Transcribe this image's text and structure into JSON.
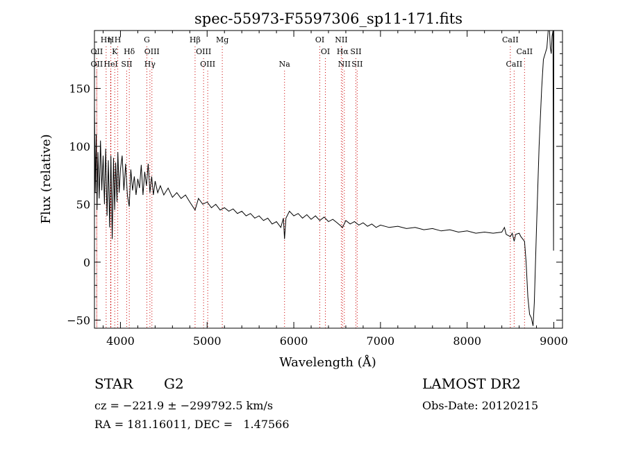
{
  "chart_data": {
    "type": "line",
    "title": "spec-55973-F5597306_sp11-171.fits",
    "xlabel": "Wavelength (Å)",
    "ylabel": "Flux (relative)",
    "xlim": [
      3700,
      9100
    ],
    "ylim": [
      -57,
      200
    ],
    "x_ticks": [
      4000,
      5000,
      6000,
      7000,
      8000,
      9000
    ],
    "y_ticks": [
      -50,
      0,
      50,
      100,
      150
    ],
    "line_color": "#000000",
    "marker_color": "#cc0000",
    "series": [
      {
        "values": [
          [
            3700,
            135
          ],
          [
            3710,
            60
          ],
          [
            3720,
            110
          ],
          [
            3730,
            45
          ],
          [
            3740,
            95
          ],
          [
            3755,
            55
          ],
          [
            3770,
            105
          ],
          [
            3785,
            62
          ],
          [
            3800,
            92
          ],
          [
            3815,
            50
          ],
          [
            3830,
            98
          ],
          [
            3845,
            40
          ],
          [
            3860,
            88
          ],
          [
            3875,
            30
          ],
          [
            3890,
            92
          ],
          [
            3905,
            20
          ],
          [
            3920,
            90
          ],
          [
            3933,
            45
          ],
          [
            3945,
            86
          ],
          [
            3960,
            52
          ],
          [
            3970,
            95
          ],
          [
            3985,
            60
          ],
          [
            4000,
            80
          ],
          [
            4020,
            92
          ],
          [
            4040,
            62
          ],
          [
            4060,
            85
          ],
          [
            4080,
            58
          ],
          [
            4101,
            48
          ],
          [
            4120,
            80
          ],
          [
            4140,
            62
          ],
          [
            4160,
            74
          ],
          [
            4180,
            58
          ],
          [
            4200,
            72
          ],
          [
            4220,
            64
          ],
          [
            4240,
            84
          ],
          [
            4260,
            58
          ],
          [
            4280,
            78
          ],
          [
            4300,
            66
          ],
          [
            4320,
            85
          ],
          [
            4340,
            60
          ],
          [
            4360,
            74
          ],
          [
            4380,
            58
          ],
          [
            4400,
            70
          ],
          [
            4430,
            60
          ],
          [
            4460,
            66
          ],
          [
            4500,
            58
          ],
          [
            4550,
            64
          ],
          [
            4600,
            56
          ],
          [
            4650,
            60
          ],
          [
            4700,
            55
          ],
          [
            4750,
            58
          ],
          [
            4800,
            52
          ],
          [
            4861,
            45
          ],
          [
            4900,
            55
          ],
          [
            4950,
            50
          ],
          [
            5000,
            52
          ],
          [
            5050,
            47
          ],
          [
            5100,
            50
          ],
          [
            5150,
            45
          ],
          [
            5200,
            47
          ],
          [
            5250,
            44
          ],
          [
            5300,
            46
          ],
          [
            5350,
            42
          ],
          [
            5400,
            44
          ],
          [
            5450,
            40
          ],
          [
            5500,
            42
          ],
          [
            5550,
            38
          ],
          [
            5600,
            40
          ],
          [
            5650,
            36
          ],
          [
            5700,
            38
          ],
          [
            5750,
            33
          ],
          [
            5800,
            35
          ],
          [
            5850,
            30
          ],
          [
            5880,
            38
          ],
          [
            5893,
            20
          ],
          [
            5910,
            38
          ],
          [
            5950,
            44
          ],
          [
            6000,
            40
          ],
          [
            6050,
            42
          ],
          [
            6100,
            38
          ],
          [
            6150,
            41
          ],
          [
            6200,
            37
          ],
          [
            6250,
            40
          ],
          [
            6300,
            36
          ],
          [
            6350,
            39
          ],
          [
            6400,
            35
          ],
          [
            6450,
            37
          ],
          [
            6500,
            34
          ],
          [
            6563,
            30
          ],
          [
            6600,
            36
          ],
          [
            6650,
            33
          ],
          [
            6700,
            35
          ],
          [
            6750,
            32
          ],
          [
            6800,
            34
          ],
          [
            6850,
            31
          ],
          [
            6900,
            33
          ],
          [
            6950,
            30
          ],
          [
            7000,
            32
          ],
          [
            7100,
            30
          ],
          [
            7200,
            31
          ],
          [
            7300,
            29
          ],
          [
            7400,
            30
          ],
          [
            7500,
            28
          ],
          [
            7600,
            29
          ],
          [
            7700,
            27
          ],
          [
            7800,
            28
          ],
          [
            7900,
            26
          ],
          [
            8000,
            27
          ],
          [
            8100,
            25
          ],
          [
            8200,
            26
          ],
          [
            8300,
            25
          ],
          [
            8400,
            26
          ],
          [
            8430,
            30
          ],
          [
            8450,
            24
          ],
          [
            8498,
            22
          ],
          [
            8520,
            25
          ],
          [
            8542,
            18
          ],
          [
            8560,
            24
          ],
          [
            8600,
            25
          ],
          [
            8620,
            22
          ],
          [
            8662,
            18
          ],
          [
            8680,
            0
          ],
          [
            8700,
            -30
          ],
          [
            8720,
            -45
          ],
          [
            8740,
            -48
          ],
          [
            8760,
            -55
          ],
          [
            8775,
            -35
          ],
          [
            8800,
            30
          ],
          [
            8830,
            100
          ],
          [
            8860,
            150
          ],
          [
            8880,
            175
          ],
          [
            8900,
            180
          ],
          [
            8920,
            185
          ],
          [
            8935,
            200
          ],
          [
            8950,
            200
          ],
          [
            8960,
            185
          ],
          [
            8970,
            180
          ],
          [
            8980,
            195
          ],
          [
            8990,
            200
          ],
          [
            8997,
            10
          ],
          [
            9000,
            200
          ]
        ]
      }
    ],
    "line_markers": [
      {
        "label": "OII",
        "x": 3727,
        "row": 2
      },
      {
        "label": "OII",
        "x": 3727,
        "row": 3
      },
      {
        "label": "Hη",
        "x": 3835,
        "row": 1
      },
      {
        "label": "H",
        "x": 3889,
        "row": 1
      },
      {
        "label": "HeI",
        "x": 3889,
        "row": 3
      },
      {
        "label": "K",
        "x": 3934,
        "row": 2
      },
      {
        "label": "H",
        "x": 3969,
        "row": 1
      },
      {
        "label": "SII",
        "x": 4072,
        "row": 3
      },
      {
        "label": "Hδ",
        "x": 4102,
        "row": 2
      },
      {
        "label": "G",
        "x": 4305,
        "row": 1
      },
      {
        "label": "OIII",
        "x": 4363,
        "row": 2
      },
      {
        "label": "Hγ",
        "x": 4340,
        "row": 3
      },
      {
        "label": "Hβ",
        "x": 4861,
        "row": 1
      },
      {
        "label": "OIII",
        "x": 4959,
        "row": 2
      },
      {
        "label": "OIII",
        "x": 5007,
        "row": 3
      },
      {
        "label": "Mg",
        "x": 5175,
        "row": 1
      },
      {
        "label": "Na",
        "x": 5893,
        "row": 3
      },
      {
        "label": "OI",
        "x": 6300,
        "row": 1
      },
      {
        "label": "OI",
        "x": 6364,
        "row": 2
      },
      {
        "label": "NII",
        "x": 6548,
        "row": 1
      },
      {
        "label": "Hα",
        "x": 6563,
        "row": 2
      },
      {
        "label": "NII",
        "x": 6583,
        "row": 3
      },
      {
        "label": "SII",
        "x": 6716,
        "row": 2
      },
      {
        "label": "SII",
        "x": 6731,
        "row": 3
      },
      {
        "label": "CaII",
        "x": 8498,
        "row": 1
      },
      {
        "label": "CaII",
        "x": 8542,
        "row": 3
      },
      {
        "label": "CaII",
        "x": 8662,
        "row": 2
      }
    ]
  },
  "info": {
    "object_class": "STAR",
    "subclass": "G2",
    "survey": "LAMOST DR2",
    "cz": "cz = −221.9 ± −299792.5 km/s",
    "obs_date": "Obs-Date: 20120215",
    "coords": "RA = 181.16011, DEC =   1.47566"
  }
}
